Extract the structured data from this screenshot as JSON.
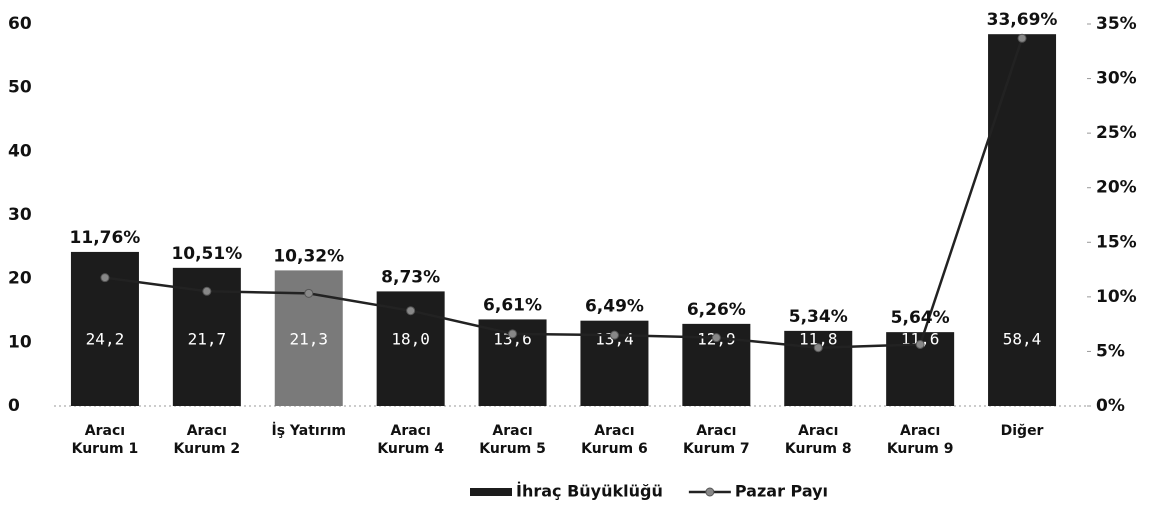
{
  "chart_data": {
    "type": "bar",
    "categories": [
      "Aracı Kurum 1",
      "Aracı Kurum 2",
      "İş Yatırım",
      "Aracı Kurum 4",
      "Aracı Kurum 5",
      "Aracı Kurum 6",
      "Aracı Kurum 7",
      "Aracı Kurum 8",
      "Aracı Kurum 9",
      "Diğer"
    ],
    "series": [
      {
        "name": "İhraç Büyüklüğü",
        "type": "bar",
        "axis": "y",
        "color": "#1c1c1c",
        "colors": [
          "#1c1c1c",
          "#1c1c1c",
          "#7a7a7a",
          "#1c1c1c",
          "#1c1c1c",
          "#1c1c1c",
          "#1c1c1c",
          "#1c1c1c",
          "#1c1c1c",
          "#1c1c1c"
        ],
        "values": [
          24.2,
          21.7,
          21.3,
          18.0,
          13.6,
          13.4,
          12.9,
          11.8,
          11.6,
          58.4
        ],
        "value_labels": [
          "24,2",
          "21,7",
          "21,3",
          "18,0",
          "13,6",
          "13,4",
          "12,9",
          "11,8",
          "11,6",
          "58,4"
        ]
      },
      {
        "name": "Pazar Payı",
        "type": "line",
        "axis": "y2",
        "color": "#222222",
        "values": [
          11.76,
          10.51,
          10.32,
          8.73,
          6.61,
          6.49,
          6.26,
          5.34,
          5.64,
          33.69
        ],
        "value_labels": [
          "11,76%",
          "10,51%",
          "10,32%",
          "8,73%",
          "6,61%",
          "6,49%",
          "6,26%",
          "5,34%",
          "5,64%",
          "33,69%"
        ]
      }
    ],
    "ylim": [
      0,
      60
    ],
    "yticks": [
      0,
      10,
      20,
      30,
      40,
      50,
      60
    ],
    "y2lim": [
      0,
      35
    ],
    "y2ticks": [
      {
        "value": 0,
        "label": "0%"
      },
      {
        "value": 5,
        "label": "5%"
      },
      {
        "value": 10,
        "label": "10%"
      },
      {
        "value": 15,
        "label": "15%"
      },
      {
        "value": 20,
        "label": "20%"
      },
      {
        "value": 25,
        "label": "25%"
      },
      {
        "value": 30,
        "label": "30%"
      },
      {
        "value": 35,
        "label": "35%"
      }
    ],
    "grid": false
  }
}
